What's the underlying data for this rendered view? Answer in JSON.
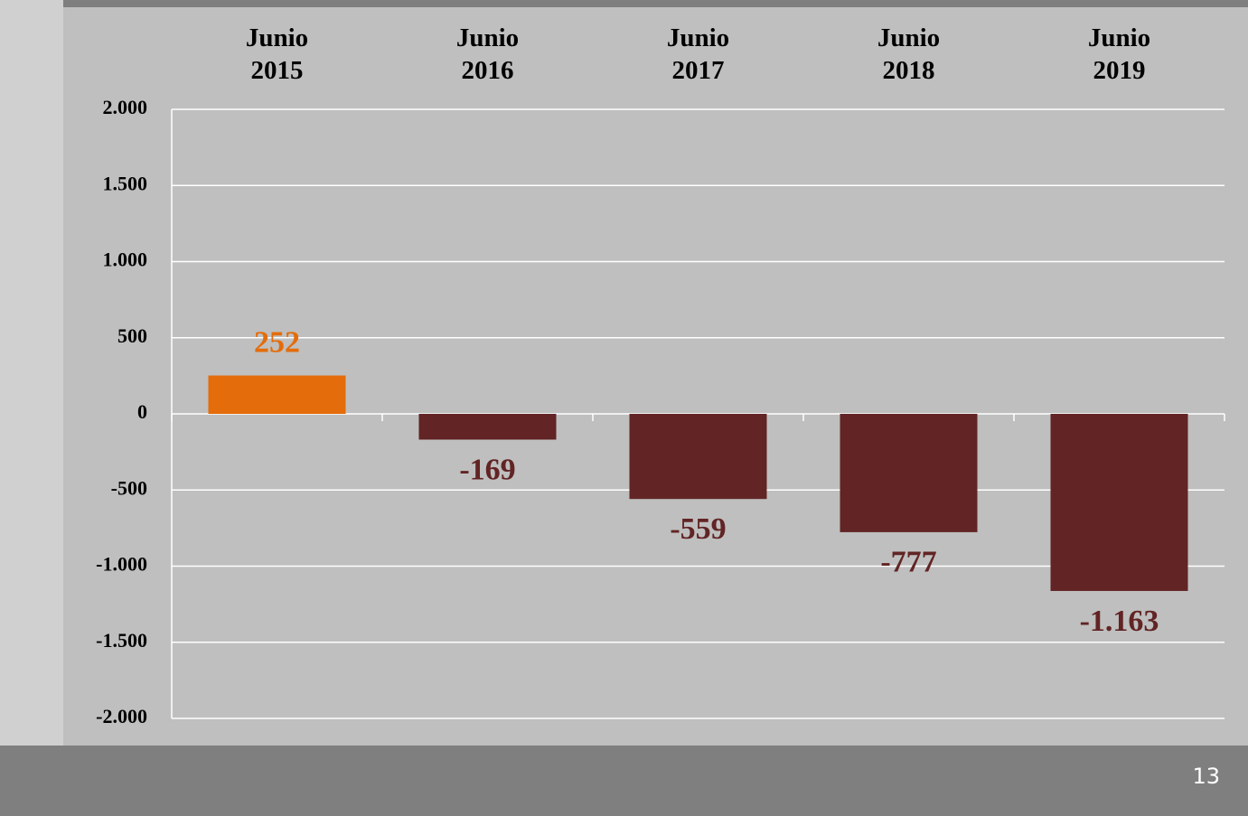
{
  "chart_data": {
    "type": "bar",
    "categories": [
      "Junio 2015",
      "Junio 2016",
      "Junio 2017",
      "Junio 2018",
      "Junio 2019"
    ],
    "values": [
      252,
      -169,
      -559,
      -777,
      -1163
    ],
    "value_labels": [
      "252",
      "-169",
      "-559",
      "-777",
      "-1.163"
    ],
    "colors": [
      "#e46c0a",
      "#622424",
      "#622424",
      "#622424",
      "#622424"
    ],
    "ylim": [
      -2000,
      2000
    ],
    "yticks": [
      {
        "value": 2000,
        "label": "2.000"
      },
      {
        "value": 1500,
        "label": "1.500"
      },
      {
        "value": 1000,
        "label": "1.000"
      },
      500,
      0,
      -500,
      {
        "value": -1000,
        "label": "-1.000"
      },
      {
        "value": -1500,
        "label": "-1.500"
      },
      {
        "value": -2000,
        "label": "-2.000"
      }
    ],
    "grid": true
  },
  "page_number": "13"
}
